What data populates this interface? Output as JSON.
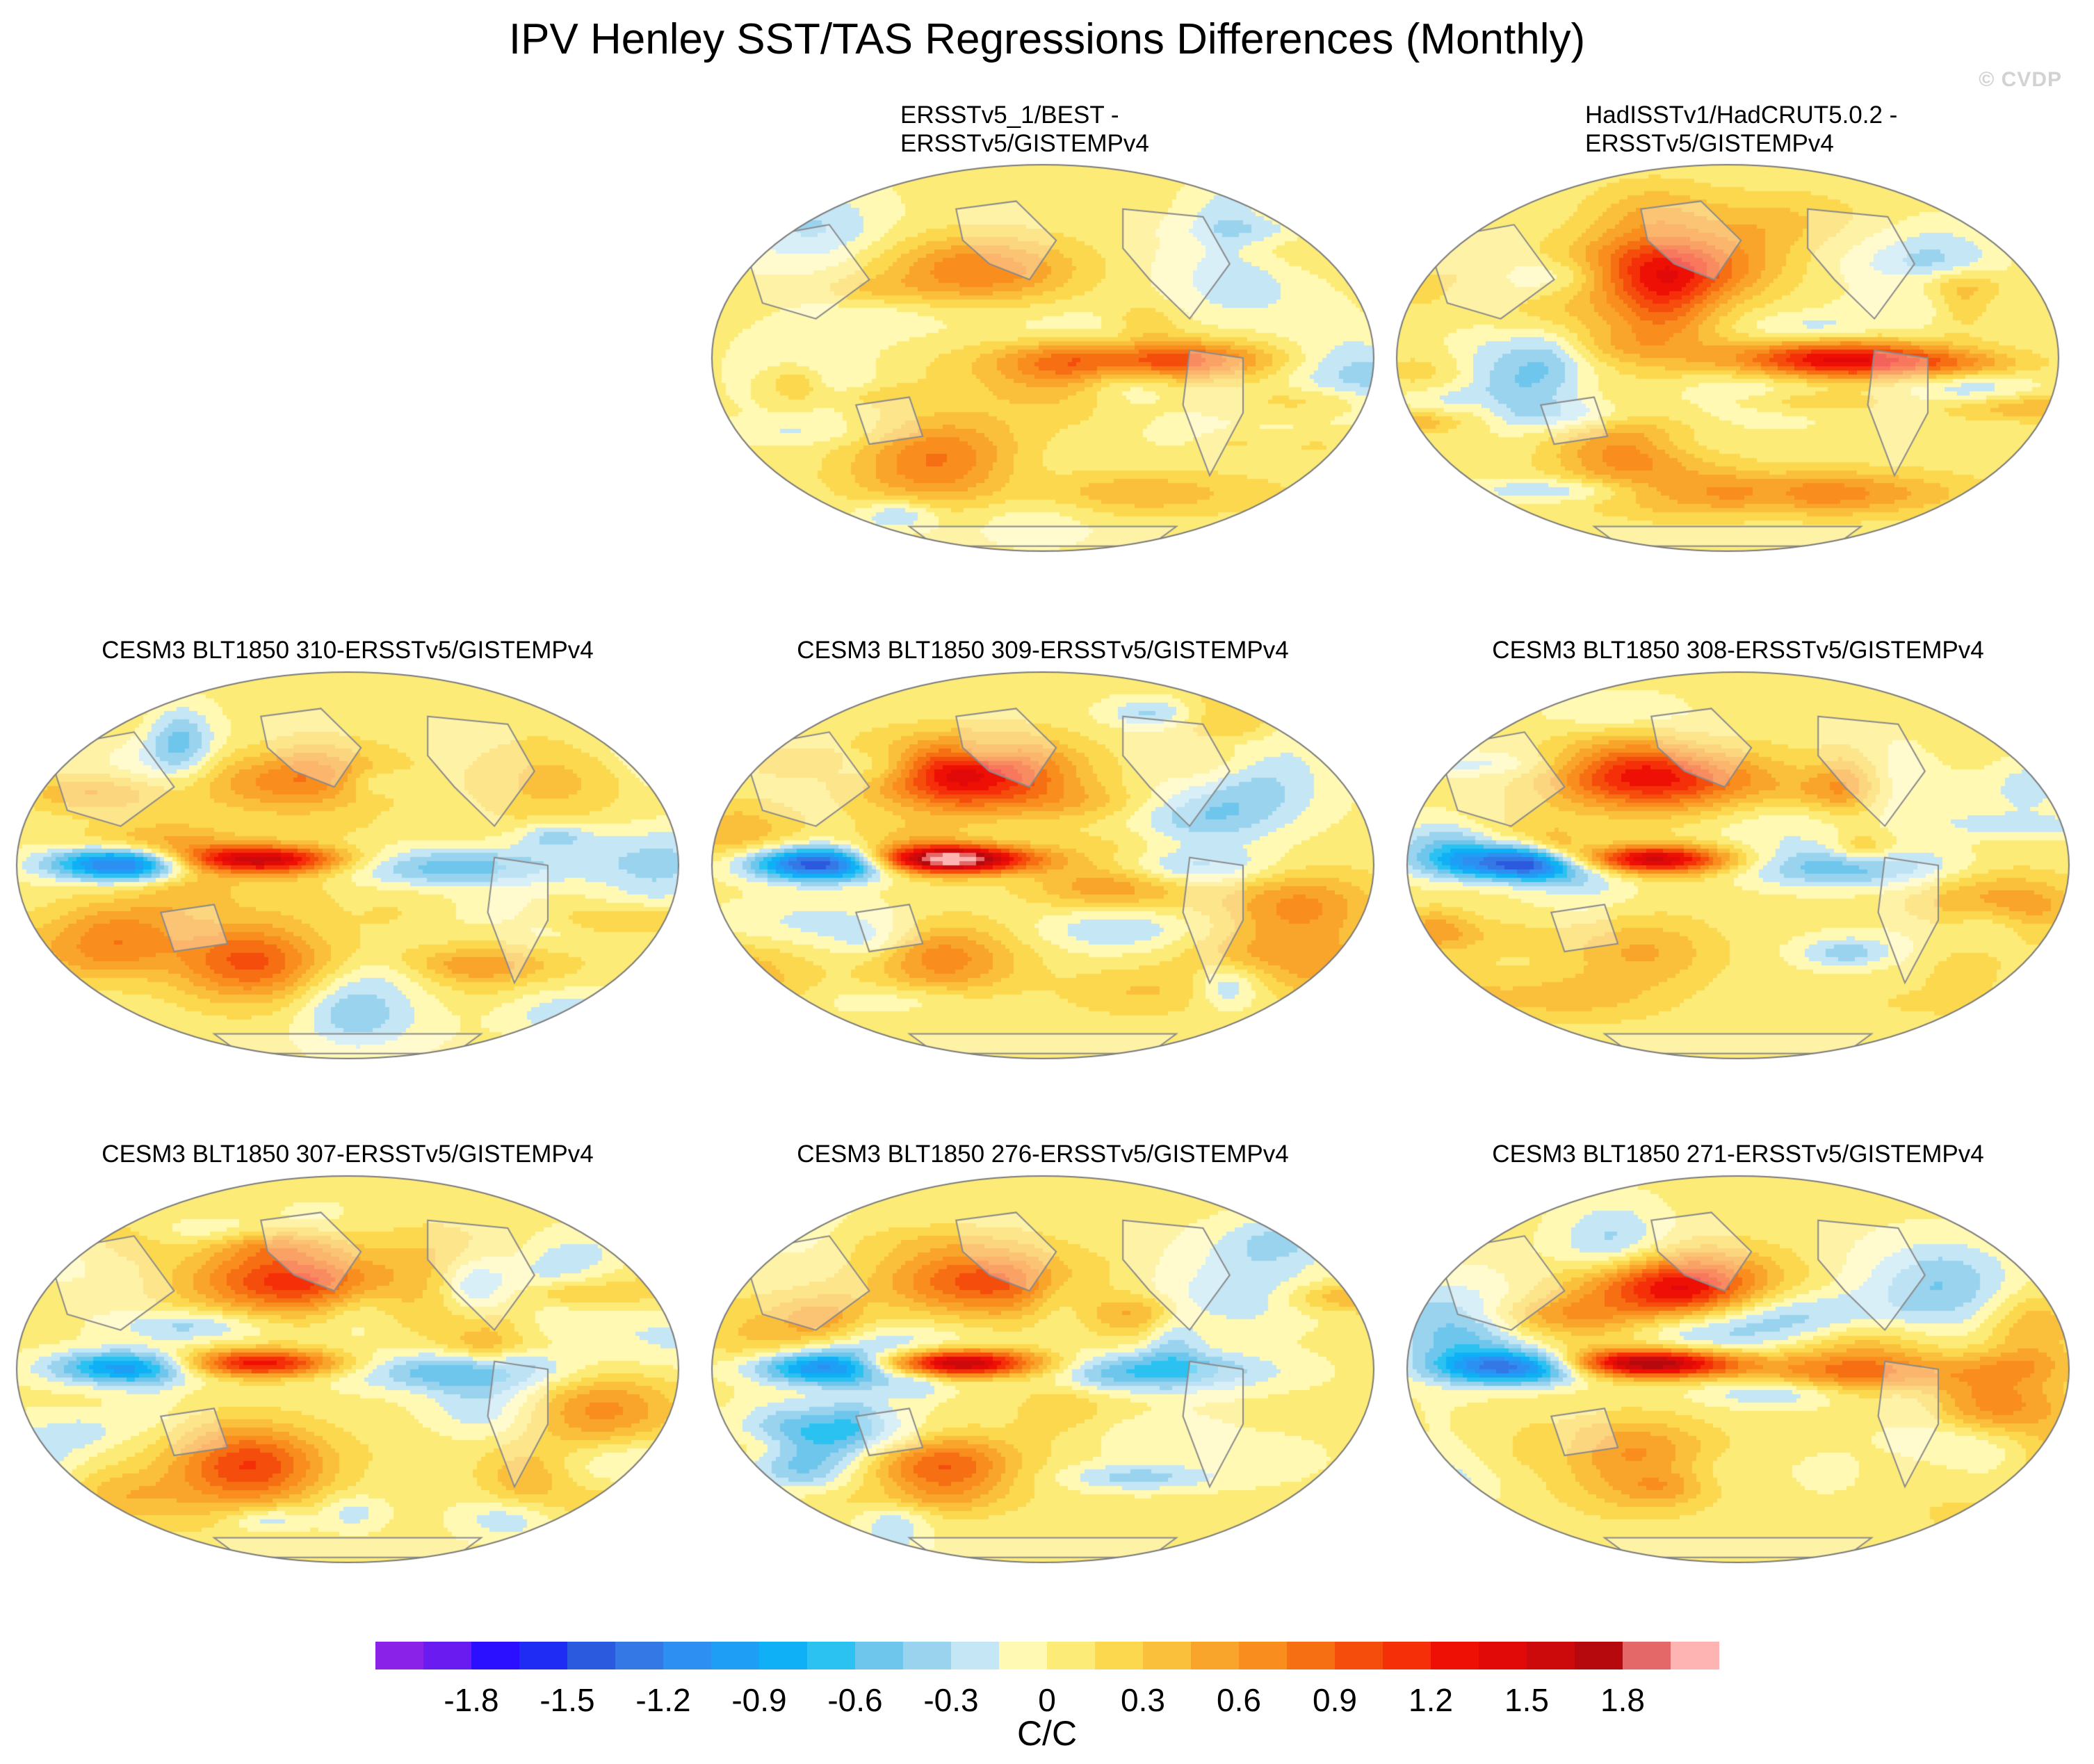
{
  "title": "IPV Henley SST/TAS Regressions Differences (Monthly)",
  "watermark": "© CVDP",
  "panels": [
    {
      "id": "best",
      "title": "ERSSTv5_1/BEST -\nERSSTv5/GISTEMPv4",
      "align": "left2",
      "seed": 11,
      "features": [
        {
          "type": "north_pacific",
          "value": 0.7
        },
        {
          "type": "east_pacific",
          "value": 1.1
        },
        {
          "type": "west_indo",
          "value": -0.2
        },
        {
          "type": "south_pacific",
          "value": 0.6
        },
        {
          "type": "north_atlantic",
          "value": -0.4
        },
        {
          "type": "central_pacific",
          "value": 0.3
        },
        {
          "type": "southern_ocean",
          "value": 0.4
        }
      ]
    },
    {
      "id": "hadcrut",
      "title": "HadISSTv1/HadCRUT5.0.2 -\nERSSTv5/GISTEMPv4",
      "align": "left2",
      "seed": 23,
      "features": [
        {
          "type": "north_pacific",
          "value": 1.1
        },
        {
          "type": "east_pacific",
          "value": 1.4
        },
        {
          "type": "central_pacific",
          "value": -0.3
        },
        {
          "type": "south_pacific",
          "value": 0.6
        },
        {
          "type": "southern_ocean",
          "value": 0.7
        },
        {
          "type": "north_atlantic",
          "value": -0.5
        },
        {
          "type": "west_indo",
          "value": -0.6
        }
      ]
    },
    {
      "id": "cesm310",
      "title": "CESM3 BLT1850 310-ERSSTv5/GISTEMPv4",
      "align": "center",
      "seed": 31,
      "features": [
        {
          "type": "warm_pool",
          "value": 1.5
        },
        {
          "type": "indian",
          "value": -1.6
        },
        {
          "type": "north_pacific",
          "value": 0.8
        },
        {
          "type": "south_pacific",
          "value": 0.9
        },
        {
          "type": "east_pacific",
          "value": -0.6
        },
        {
          "type": "south_indian",
          "value": 0.6
        },
        {
          "type": "north_atlantic",
          "value": 0.3
        }
      ]
    },
    {
      "id": "cesm309",
      "title": "CESM3 BLT1850 309-ERSSTv5/GISTEMPv4",
      "align": "center",
      "seed": 43,
      "features": [
        {
          "type": "warm_pool",
          "value": 2.0
        },
        {
          "type": "indian",
          "value": -1.7
        },
        {
          "type": "north_pacific",
          "value": 1.1
        },
        {
          "type": "south_pacific",
          "value": 0.6
        },
        {
          "type": "east_pacific",
          "value": -0.7
        },
        {
          "type": "south_atlantic",
          "value": 0.6
        },
        {
          "type": "north_atlantic",
          "value": -0.5
        }
      ]
    },
    {
      "id": "cesm308",
      "title": "CESM3 BLT1850 308-ERSSTv5/GISTEMPv4",
      "align": "center",
      "seed": 57,
      "features": [
        {
          "type": "warm_pool",
          "value": 1.5
        },
        {
          "type": "indian",
          "value": -1.5
        },
        {
          "type": "north_pacific",
          "value": 1.1
        },
        {
          "type": "south_pacific",
          "value": 0.6
        },
        {
          "type": "east_pacific",
          "value": -0.6
        },
        {
          "type": "south_atlantic",
          "value": 0.5
        },
        {
          "type": "north_atlantic",
          "value": -0.3
        }
      ]
    },
    {
      "id": "cesm307",
      "title": "CESM3 BLT1850 307-ERSSTv5/GISTEMPv4",
      "align": "center",
      "seed": 67,
      "features": [
        {
          "type": "warm_pool",
          "value": 1.3
        },
        {
          "type": "indian",
          "value": -1.1
        },
        {
          "type": "north_pacific",
          "value": 1.0
        },
        {
          "type": "south_pacific",
          "value": 1.0
        },
        {
          "type": "east_pacific",
          "value": -0.6
        },
        {
          "type": "south_atlantic",
          "value": 0.6
        },
        {
          "type": "north_atlantic",
          "value": -0.6
        }
      ]
    },
    {
      "id": "cesm276",
      "title": "CESM3 BLT1850 276-ERSSTv5/GISTEMPv4",
      "align": "center",
      "seed": 79,
      "features": [
        {
          "type": "warm_pool",
          "value": 1.9
        },
        {
          "type": "indian",
          "value": -1.2
        },
        {
          "type": "north_pacific",
          "value": 0.9
        },
        {
          "type": "south_pacific",
          "value": 0.7
        },
        {
          "type": "east_pacific",
          "value": -0.7
        },
        {
          "type": "south_indian",
          "value": -0.6
        },
        {
          "type": "north_atlantic",
          "value": -0.3
        }
      ]
    },
    {
      "id": "cesm271",
      "title": "CESM3 BLT1850 271-ERSSTv5/GISTEMPv4",
      "align": "center",
      "seed": 89,
      "features": [
        {
          "type": "warm_pool",
          "value": 1.8
        },
        {
          "type": "indian",
          "value": -1.3
        },
        {
          "type": "north_pacific",
          "value": 1.2
        },
        {
          "type": "south_pacific",
          "value": 0.8
        },
        {
          "type": "east_pacific",
          "value": 0.6
        },
        {
          "type": "south_atlantic",
          "value": 0.7
        },
        {
          "type": "north_atlantic",
          "value": -0.5
        }
      ]
    }
  ],
  "colorbar": {
    "units": "C/C",
    "levels": [
      -2.1,
      -1.95,
      -1.8,
      -1.65,
      -1.5,
      -1.35,
      -1.2,
      -1.05,
      -0.9,
      -0.75,
      -0.6,
      -0.45,
      -0.3,
      -0.15,
      0,
      0.15,
      0.3,
      0.45,
      0.6,
      0.75,
      0.9,
      1.05,
      1.2,
      1.35,
      1.5,
      1.65,
      1.8,
      1.95
    ],
    "colors": [
      "#8b22e8",
      "#6a1cf0",
      "#2a10ff",
      "#1e2cf4",
      "#2c5adf",
      "#3478e6",
      "#2e8ff2",
      "#1f9ef5",
      "#0fb0f5",
      "#2bc2f2",
      "#6fc6ec",
      "#9ad3ee",
      "#c4e6f5",
      "#fff9b4",
      "#fdeb78",
      "#fcd84e",
      "#fbc03b",
      "#f9a52b",
      "#f98e1e",
      "#f76f13",
      "#f54d0c",
      "#f52f07",
      "#ee0f05",
      "#e20a08",
      "#cd0a0b",
      "#b5090d",
      "#e46868",
      "#ffb4b4"
    ],
    "tick_labels": [
      "-1.8",
      "-1.5",
      "-1.2",
      "-0.9",
      "-0.6",
      "-0.3",
      "0",
      "0.3",
      "0.6",
      "0.9",
      "1.2",
      "1.5",
      "1.8"
    ]
  }
}
